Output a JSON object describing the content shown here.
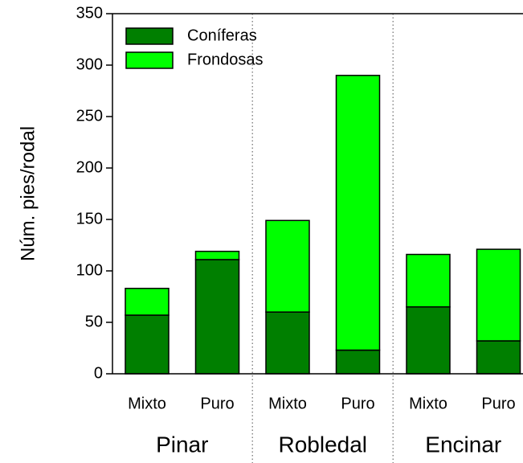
{
  "chart_data": {
    "type": "stacked_bar",
    "y_label": "Núm. pies/rodal",
    "categories": [
      "Mixto",
      "Puro",
      "Mixto",
      "Puro",
      "Mixto",
      "Puro"
    ],
    "groups": [
      "Pinar",
      "Robledal",
      "Encinar"
    ],
    "series": [
      {
        "name": "Coníferas",
        "color": "#007f00",
        "values": [
          57,
          111,
          60,
          23,
          65,
          32
        ]
      },
      {
        "name": "Frondosas",
        "color": "#00ff00",
        "values": [
          26,
          8,
          89,
          267,
          51,
          89
        ]
      }
    ],
    "ylim": [
      0,
      350
    ],
    "yticks": [
      0,
      50,
      100,
      150,
      200,
      250,
      300,
      350
    ],
    "legend": "upper left"
  }
}
